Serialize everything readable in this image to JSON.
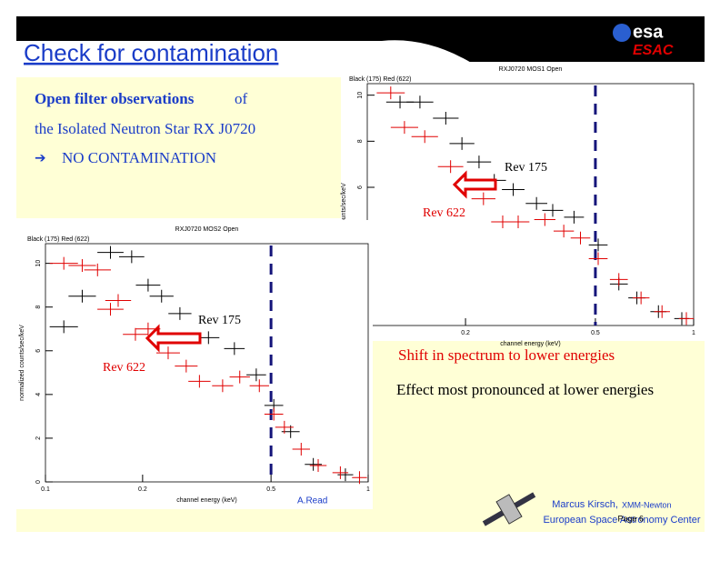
{
  "header": {
    "title": "Check for contamination",
    "logo": "esa",
    "logo_sub": "ESAC"
  },
  "intro": {
    "line1_bold": "Open filter observations",
    "line1_rest": "of",
    "line2": "the Isolated Neutron Star RX J0720",
    "bullet": "➔",
    "line3": "NO CONTAMINATION"
  },
  "plots": [
    {
      "type": "scatter",
      "title": "RXJ0720   MOS1   Open",
      "legend_text": "Black (175)   Red (622)",
      "xlabel": "channel energy (keV)",
      "ylabel": "counts/sec/keV",
      "xscale": "log",
      "xlim": [
        0.1,
        1
      ],
      "xticks": [
        0.2,
        0.5,
        1
      ],
      "ylim": [
        0,
        10.5
      ],
      "yticks": [
        6,
        8,
        10
      ],
      "marker_x": 0.5,
      "annotations": [
        "Rev 175",
        "Rev 622"
      ],
      "series": [
        {
          "color": "#000000",
          "x": [
            0.126,
            0.145,
            0.174,
            0.195,
            0.22,
            0.245,
            0.28,
            0.33,
            0.37,
            0.43,
            0.51,
            0.59,
            0.67,
            0.78,
            0.92
          ],
          "values": [
            9.7,
            9.7,
            9.0,
            7.9,
            7.1,
            6.3,
            5.9,
            5.3,
            5.0,
            4.7,
            3.5,
            1.8,
            1.2,
            0.6,
            0.3
          ]
        },
        {
          "color": "#e00000",
          "x": [
            0.118,
            0.13,
            0.15,
            0.18,
            0.227,
            0.26,
            0.29,
            0.35,
            0.4,
            0.45,
            0.51,
            0.59,
            0.69,
            0.8,
            0.95
          ],
          "values": [
            10.1,
            8.6,
            8.2,
            6.9,
            5.5,
            4.5,
            4.5,
            4.6,
            4.1,
            3.8,
            2.9,
            2.0,
            1.2,
            0.6,
            0.3
          ]
        }
      ]
    },
    {
      "type": "scatter",
      "title": "RXJ0720   MOS2   Open",
      "legend_text": "Black (175)   Red (622)",
      "xlabel": "channel energy (keV)",
      "ylabel": "normalized counts/sec/keV",
      "xscale": "log",
      "xlim": [
        0.1,
        1
      ],
      "xticks": [
        0.1,
        0.2,
        0.5,
        1
      ],
      "ylim": [
        0,
        10.9
      ],
      "yticks": [
        0,
        2,
        4,
        6,
        8,
        10
      ],
      "marker_x": 0.5,
      "annotations": [
        "Rev 175",
        "Rev 622"
      ],
      "series": [
        {
          "color": "#000000",
          "x": [
            0.114,
            0.13,
            0.159,
            0.185,
            0.208,
            0.229,
            0.261,
            0.32,
            0.385,
            0.45,
            0.51,
            0.575,
            0.676,
            0.85
          ],
          "values": [
            7.1,
            8.5,
            10.5,
            10.3,
            9.0,
            8.5,
            7.7,
            6.6,
            6.1,
            4.9,
            3.5,
            2.3,
            0.8,
            0.33
          ]
        },
        {
          "color": "#e00000",
          "x": [
            0.114,
            0.13,
            0.145,
            0.159,
            0.168,
            0.19,
            0.208,
            0.24,
            0.273,
            0.3,
            0.354,
            0.4,
            0.46,
            0.51,
            0.55,
            0.62,
            0.7,
            0.82,
            0.94
          ],
          "values": [
            10.0,
            9.9,
            9.7,
            7.9,
            8.3,
            6.75,
            7.0,
            5.9,
            5.3,
            4.6,
            4.4,
            4.8,
            4.4,
            3.1,
            2.5,
            1.5,
            0.75,
            0.42,
            0.2
          ]
        }
      ]
    }
  ],
  "credit": "A.Read",
  "notes": [
    "Shift in spectrum to lower energies",
    "Effect most pronounced at lower energies"
  ],
  "footer": {
    "author": "Marcus Kirsch,",
    "mission": "XMM-Newton",
    "institute": "European Space Astronomy Center",
    "page": "Page 6"
  }
}
